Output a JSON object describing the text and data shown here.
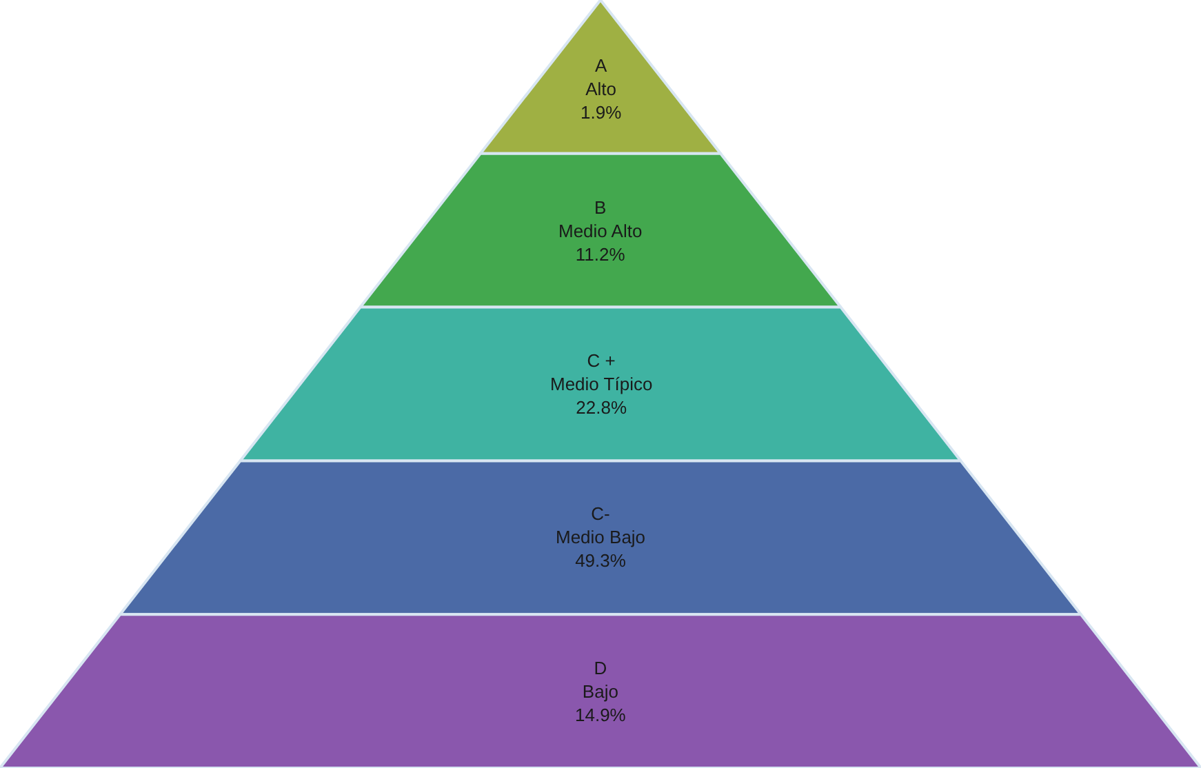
{
  "chart_data": {
    "type": "other",
    "categories": [
      "A\nAlto",
      "B\nMedio Alto",
      "C +\nMedio Típico",
      "C-\nMedio Bajo",
      "D\nBajo"
    ],
    "values": [
      1.9,
      11.2,
      22.8,
      49.3,
      14.9
    ],
    "value_labels": [
      "1.9%",
      "11.2%",
      "22.8%",
      "49.3%",
      "14.9%"
    ],
    "colors": [
      "#9fb043",
      "#43a84e",
      "#3fb3a2",
      "#4b6aa6",
      "#8a57ad"
    ]
  }
}
